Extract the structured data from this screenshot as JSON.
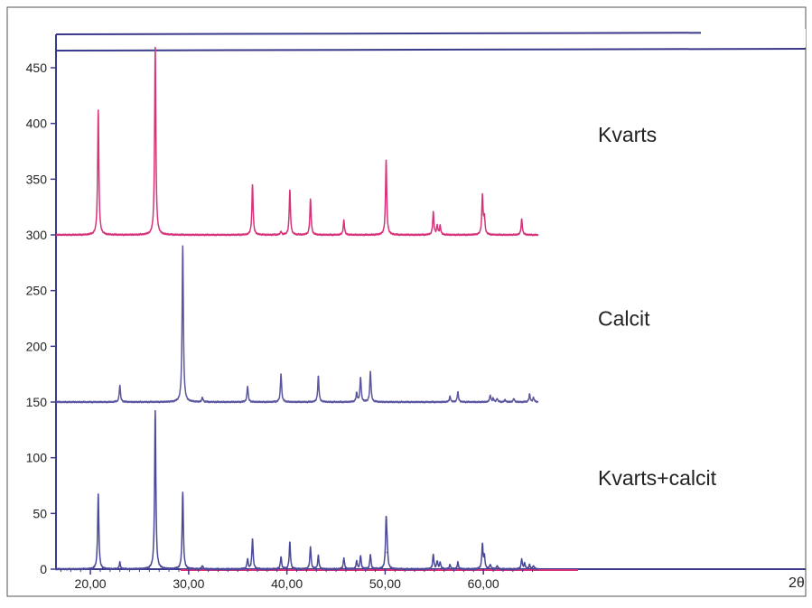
{
  "chart_data": {
    "type": "line",
    "title": "",
    "xlabel": "2θ",
    "ylabel": "",
    "xlim": [
      16.5,
      92.8
    ],
    "ylim": [
      0,
      480
    ],
    "grid": false,
    "legend": "none",
    "x_ticks": [
      20,
      30,
      40,
      50,
      60
    ],
    "x_tick_labels": [
      "20,00",
      "30,00",
      "40,00",
      "50,00",
      "60,00"
    ],
    "y_ticks": [
      0,
      50,
      100,
      150,
      200,
      250,
      300,
      350,
      400,
      450
    ],
    "y_tick_labels": [
      "0",
      "50",
      "100",
      "150",
      "200",
      "250",
      "300",
      "350",
      "400",
      "450"
    ],
    "colors": {
      "kvarts": "#d6337a",
      "calcit": "#5a56a0",
      "mix": "#4a4898",
      "frame": "#2a2a70",
      "baseline_accent": "#d6337a"
    },
    "series": [
      {
        "name": "Kvarts",
        "baseline": 300,
        "peaks": [
          [
            20.8,
            112
          ],
          [
            26.6,
            168
          ],
          [
            36.5,
            45
          ],
          [
            39.4,
            3
          ],
          [
            40.3,
            40
          ],
          [
            42.4,
            32
          ],
          [
            45.8,
            13
          ],
          [
            50.1,
            67
          ],
          [
            54.9,
            20
          ],
          [
            55.3,
            8
          ],
          [
            55.6,
            8
          ],
          [
            59.9,
            35
          ],
          [
            60.1,
            15
          ],
          [
            63.9,
            14
          ]
        ],
        "label_y": 390
      },
      {
        "name": "Calcit",
        "baseline": 150,
        "peaks": [
          [
            23.0,
            15
          ],
          [
            29.4,
            140
          ],
          [
            31.4,
            4
          ],
          [
            36.0,
            14
          ],
          [
            39.4,
            25
          ],
          [
            43.2,
            23
          ],
          [
            47.1,
            8
          ],
          [
            47.5,
            22
          ],
          [
            48.5,
            27
          ],
          [
            56.6,
            5
          ],
          [
            57.4,
            9
          ],
          [
            60.7,
            6
          ],
          [
            61.0,
            3
          ],
          [
            61.4,
            3
          ],
          [
            62.2,
            2
          ],
          [
            63.1,
            3
          ],
          [
            64.7,
            7
          ],
          [
            65.1,
            4
          ]
        ],
        "label_y": 225
      },
      {
        "name": "Kvarts+calcit",
        "baseline": 0,
        "peaks": [
          [
            20.8,
            67
          ],
          [
            23.0,
            6
          ],
          [
            26.6,
            142
          ],
          [
            29.4,
            69
          ],
          [
            31.4,
            3
          ],
          [
            36.0,
            9
          ],
          [
            36.5,
            27
          ],
          [
            39.4,
            11
          ],
          [
            40.3,
            24
          ],
          [
            42.4,
            20
          ],
          [
            43.2,
            12
          ],
          [
            45.8,
            10
          ],
          [
            47.1,
            7
          ],
          [
            47.5,
            12
          ],
          [
            48.5,
            13
          ],
          [
            50.1,
            42
          ],
          [
            50.2,
            15
          ],
          [
            54.9,
            13
          ],
          [
            55.3,
            7
          ],
          [
            55.6,
            6
          ],
          [
            56.6,
            4
          ],
          [
            57.4,
            6
          ],
          [
            59.9,
            22
          ],
          [
            60.1,
            11
          ],
          [
            60.7,
            4
          ],
          [
            61.4,
            3
          ],
          [
            63.9,
            9
          ],
          [
            64.2,
            5
          ],
          [
            64.7,
            4
          ],
          [
            65.1,
            3
          ]
        ],
        "label_y": 82
      }
    ]
  }
}
